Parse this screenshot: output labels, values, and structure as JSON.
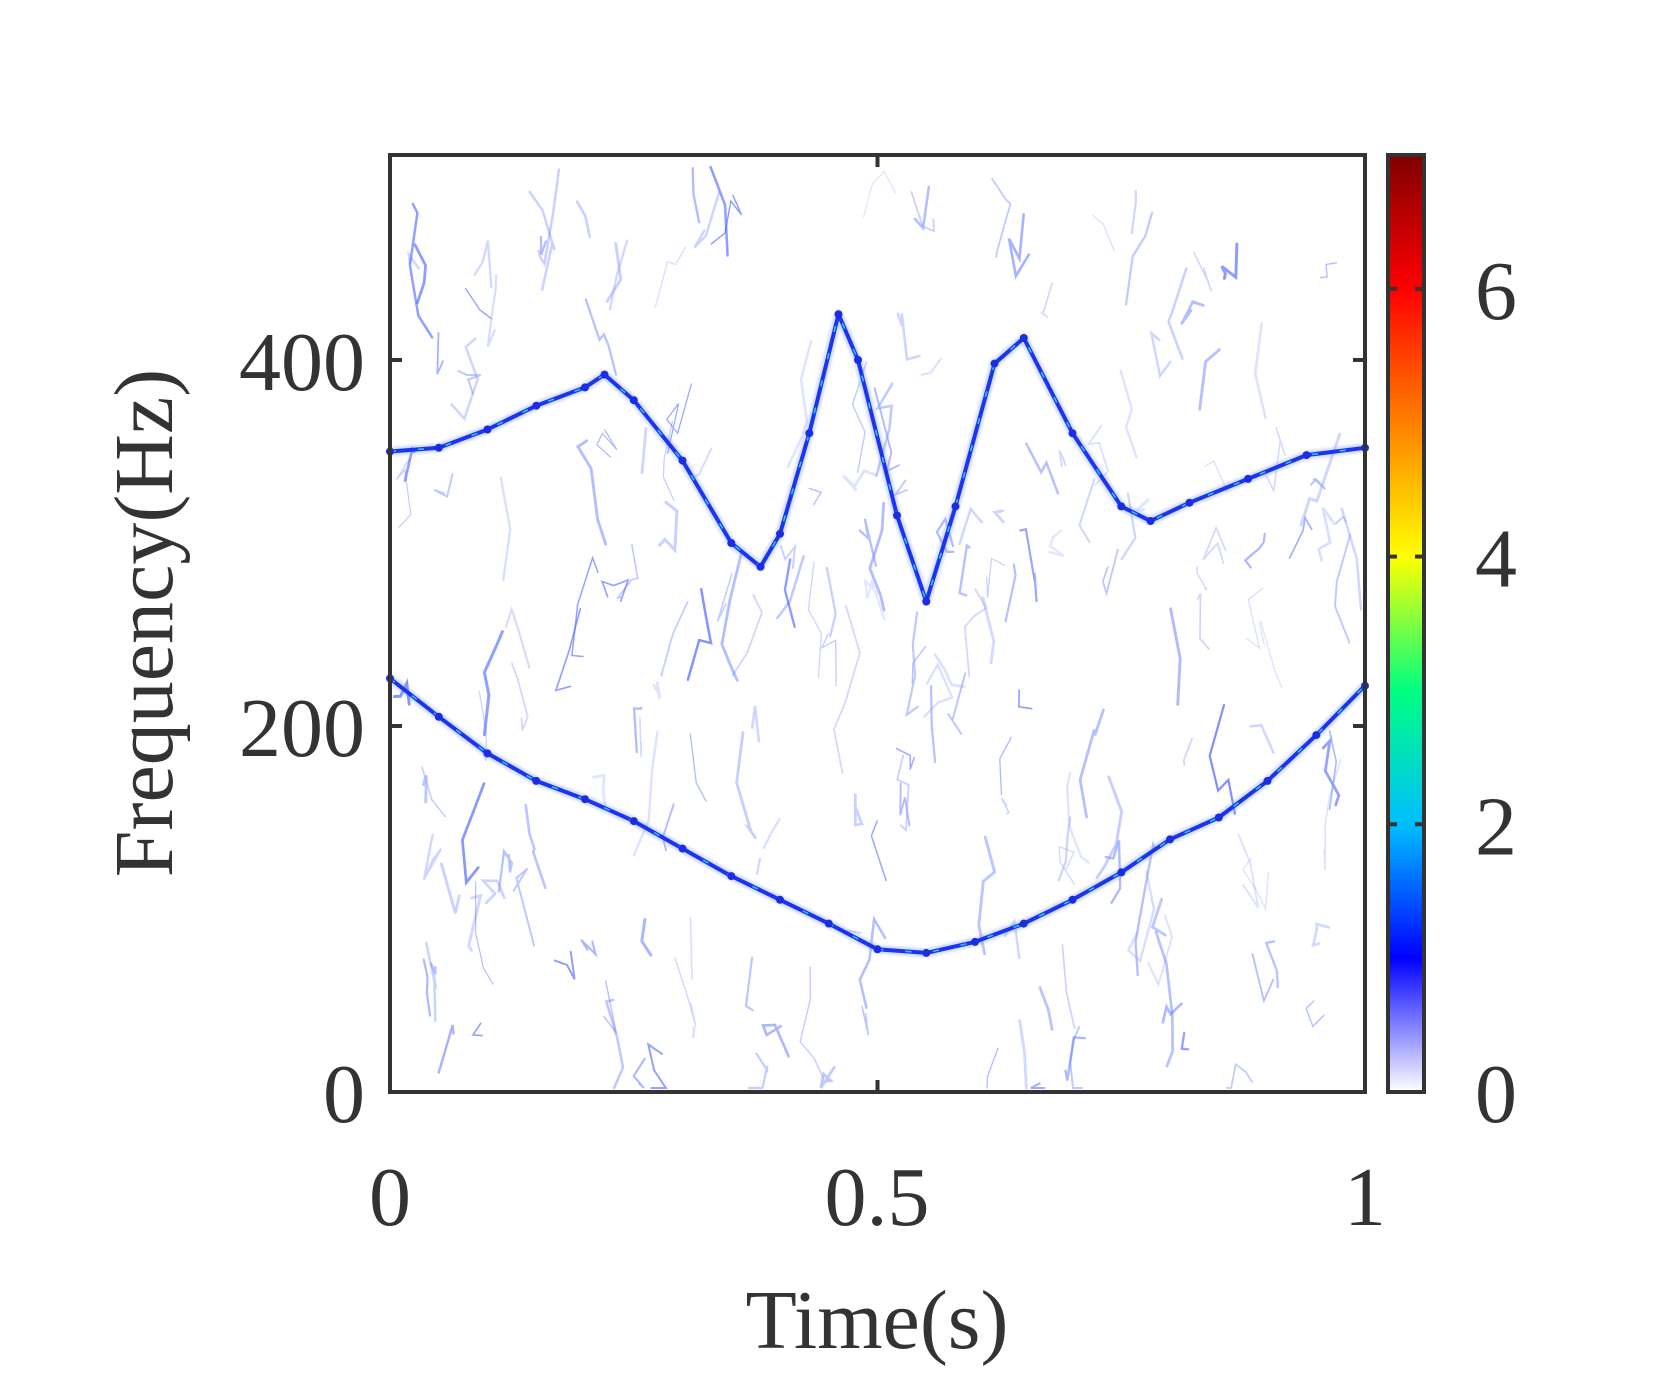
{
  "chart_data": {
    "type": "heatmap",
    "title": "",
    "xlabel": "Time(s)",
    "ylabel": "Frequency(Hz)",
    "xlim": [
      0,
      1
    ],
    "ylim": [
      0,
      512
    ],
    "xticks": [
      "0",
      "0.5",
      "1"
    ],
    "yticks": [
      "0",
      "200",
      "400"
    ],
    "grid": false,
    "colorbar": {
      "range": [
        0,
        7
      ],
      "ticks": [
        "0",
        "2",
        "4",
        "6"
      ],
      "colormap": "jet-white",
      "colors": [
        "#ffffff",
        "#0000ff",
        "#00bfff",
        "#00ff80",
        "#ffff00",
        "#ff8000",
        "#ff0000",
        "#800000"
      ]
    },
    "series": [
      {
        "x": [
          0,
          0.05,
          0.1,
          0.15,
          0.2,
          0.22,
          0.25,
          0.3,
          0.35,
          0.38,
          0.4,
          0.43,
          0.46,
          0.48,
          0.52,
          0.55,
          0.58,
          0.62,
          0.65,
          0.7,
          0.75,
          0.78,
          0.82,
          0.88,
          0.94,
          1
        ],
        "y": [
          350,
          352,
          362,
          375,
          385,
          392,
          378,
          345,
          300,
          287,
          305,
          360,
          425,
          400,
          315,
          268,
          320,
          398,
          412,
          360,
          320,
          312,
          322,
          335,
          348,
          352
        ]
      },
      {
        "x": [
          0,
          0.05,
          0.1,
          0.15,
          0.2,
          0.25,
          0.3,
          0.35,
          0.4,
          0.45,
          0.5,
          0.55,
          0.6,
          0.65,
          0.7,
          0.75,
          0.8,
          0.85,
          0.9,
          0.95,
          1
        ],
        "y": [
          226,
          205,
          185,
          170,
          160,
          148,
          133,
          118,
          105,
          92,
          78,
          76,
          82,
          92,
          105,
          120,
          138,
          150,
          170,
          195,
          222
        ]
      }
    ]
  }
}
